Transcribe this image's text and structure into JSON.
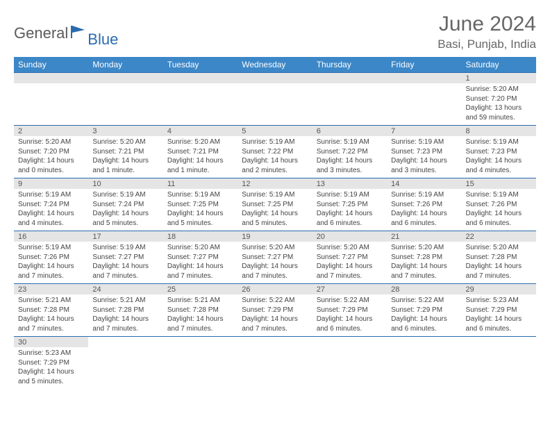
{
  "logo": {
    "general": "General",
    "blue": "Blue"
  },
  "title": "June 2024",
  "location": "Basi, Punjab, India",
  "header_bg": "#3c87c7",
  "border_color": "#2a6bb0",
  "daybar_bg": "#e5e5e5",
  "weekdays": [
    "Sunday",
    "Monday",
    "Tuesday",
    "Wednesday",
    "Thursday",
    "Friday",
    "Saturday"
  ],
  "weeks": [
    [
      null,
      null,
      null,
      null,
      null,
      null,
      {
        "d": "1",
        "sr": "Sunrise: 5:20 AM",
        "ss": "Sunset: 7:20 PM",
        "dl": "Daylight: 13 hours and 59 minutes."
      }
    ],
    [
      {
        "d": "2",
        "sr": "Sunrise: 5:20 AM",
        "ss": "Sunset: 7:20 PM",
        "dl": "Daylight: 14 hours and 0 minutes."
      },
      {
        "d": "3",
        "sr": "Sunrise: 5:20 AM",
        "ss": "Sunset: 7:21 PM",
        "dl": "Daylight: 14 hours and 1 minute."
      },
      {
        "d": "4",
        "sr": "Sunrise: 5:20 AM",
        "ss": "Sunset: 7:21 PM",
        "dl": "Daylight: 14 hours and 1 minute."
      },
      {
        "d": "5",
        "sr": "Sunrise: 5:19 AM",
        "ss": "Sunset: 7:22 PM",
        "dl": "Daylight: 14 hours and 2 minutes."
      },
      {
        "d": "6",
        "sr": "Sunrise: 5:19 AM",
        "ss": "Sunset: 7:22 PM",
        "dl": "Daylight: 14 hours and 3 minutes."
      },
      {
        "d": "7",
        "sr": "Sunrise: 5:19 AM",
        "ss": "Sunset: 7:23 PM",
        "dl": "Daylight: 14 hours and 3 minutes."
      },
      {
        "d": "8",
        "sr": "Sunrise: 5:19 AM",
        "ss": "Sunset: 7:23 PM",
        "dl": "Daylight: 14 hours and 4 minutes."
      }
    ],
    [
      {
        "d": "9",
        "sr": "Sunrise: 5:19 AM",
        "ss": "Sunset: 7:24 PM",
        "dl": "Daylight: 14 hours and 4 minutes."
      },
      {
        "d": "10",
        "sr": "Sunrise: 5:19 AM",
        "ss": "Sunset: 7:24 PM",
        "dl": "Daylight: 14 hours and 5 minutes."
      },
      {
        "d": "11",
        "sr": "Sunrise: 5:19 AM",
        "ss": "Sunset: 7:25 PM",
        "dl": "Daylight: 14 hours and 5 minutes."
      },
      {
        "d": "12",
        "sr": "Sunrise: 5:19 AM",
        "ss": "Sunset: 7:25 PM",
        "dl": "Daylight: 14 hours and 5 minutes."
      },
      {
        "d": "13",
        "sr": "Sunrise: 5:19 AM",
        "ss": "Sunset: 7:25 PM",
        "dl": "Daylight: 14 hours and 6 minutes."
      },
      {
        "d": "14",
        "sr": "Sunrise: 5:19 AM",
        "ss": "Sunset: 7:26 PM",
        "dl": "Daylight: 14 hours and 6 minutes."
      },
      {
        "d": "15",
        "sr": "Sunrise: 5:19 AM",
        "ss": "Sunset: 7:26 PM",
        "dl": "Daylight: 14 hours and 6 minutes."
      }
    ],
    [
      {
        "d": "16",
        "sr": "Sunrise: 5:19 AM",
        "ss": "Sunset: 7:26 PM",
        "dl": "Daylight: 14 hours and 7 minutes."
      },
      {
        "d": "17",
        "sr": "Sunrise: 5:19 AM",
        "ss": "Sunset: 7:27 PM",
        "dl": "Daylight: 14 hours and 7 minutes."
      },
      {
        "d": "18",
        "sr": "Sunrise: 5:20 AM",
        "ss": "Sunset: 7:27 PM",
        "dl": "Daylight: 14 hours and 7 minutes."
      },
      {
        "d": "19",
        "sr": "Sunrise: 5:20 AM",
        "ss": "Sunset: 7:27 PM",
        "dl": "Daylight: 14 hours and 7 minutes."
      },
      {
        "d": "20",
        "sr": "Sunrise: 5:20 AM",
        "ss": "Sunset: 7:27 PM",
        "dl": "Daylight: 14 hours and 7 minutes."
      },
      {
        "d": "21",
        "sr": "Sunrise: 5:20 AM",
        "ss": "Sunset: 7:28 PM",
        "dl": "Daylight: 14 hours and 7 minutes."
      },
      {
        "d": "22",
        "sr": "Sunrise: 5:20 AM",
        "ss": "Sunset: 7:28 PM",
        "dl": "Daylight: 14 hours and 7 minutes."
      }
    ],
    [
      {
        "d": "23",
        "sr": "Sunrise: 5:21 AM",
        "ss": "Sunset: 7:28 PM",
        "dl": "Daylight: 14 hours and 7 minutes."
      },
      {
        "d": "24",
        "sr": "Sunrise: 5:21 AM",
        "ss": "Sunset: 7:28 PM",
        "dl": "Daylight: 14 hours and 7 minutes."
      },
      {
        "d": "25",
        "sr": "Sunrise: 5:21 AM",
        "ss": "Sunset: 7:28 PM",
        "dl": "Daylight: 14 hours and 7 minutes."
      },
      {
        "d": "26",
        "sr": "Sunrise: 5:22 AM",
        "ss": "Sunset: 7:29 PM",
        "dl": "Daylight: 14 hours and 7 minutes."
      },
      {
        "d": "27",
        "sr": "Sunrise: 5:22 AM",
        "ss": "Sunset: 7:29 PM",
        "dl": "Daylight: 14 hours and 6 minutes."
      },
      {
        "d": "28",
        "sr": "Sunrise: 5:22 AM",
        "ss": "Sunset: 7:29 PM",
        "dl": "Daylight: 14 hours and 6 minutes."
      },
      {
        "d": "29",
        "sr": "Sunrise: 5:23 AM",
        "ss": "Sunset: 7:29 PM",
        "dl": "Daylight: 14 hours and 6 minutes."
      }
    ],
    [
      {
        "d": "30",
        "sr": "Sunrise: 5:23 AM",
        "ss": "Sunset: 7:29 PM",
        "dl": "Daylight: 14 hours and 5 minutes."
      },
      null,
      null,
      null,
      null,
      null,
      null
    ]
  ]
}
